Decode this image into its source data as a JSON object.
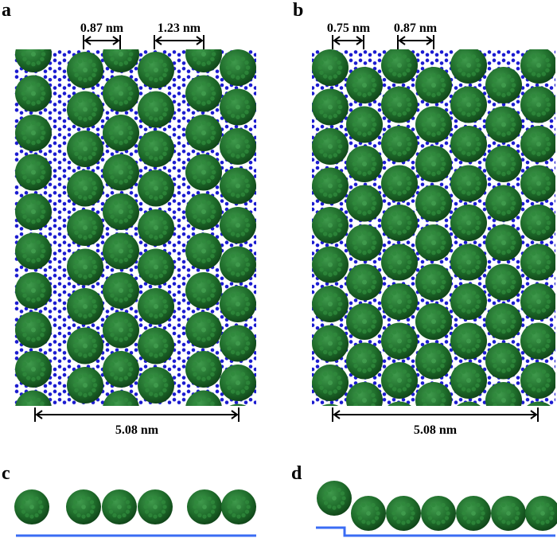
{
  "panels": {
    "a": {
      "label": "a",
      "top_dims": [
        "0.87 nm",
        "1.23 nm"
      ],
      "width_dim": "5.08 nm"
    },
    "b": {
      "label": "b",
      "top_dims": [
        "0.75 nm",
        "0.87 nm"
      ],
      "width_dim": "5.08 nm"
    },
    "c": {
      "label": "c"
    },
    "d": {
      "label": "d"
    }
  },
  "colors": {
    "fullerene": "#1e6b2a",
    "fullerene_highlight": "#3f9a4c",
    "graphene_atoms": "#1a1ad0",
    "substrate_line": "#3a6cf4"
  },
  "icons": {
    "molecule": "fullerene-c60-sphere",
    "lattice": "graphene-dot-lattice"
  }
}
